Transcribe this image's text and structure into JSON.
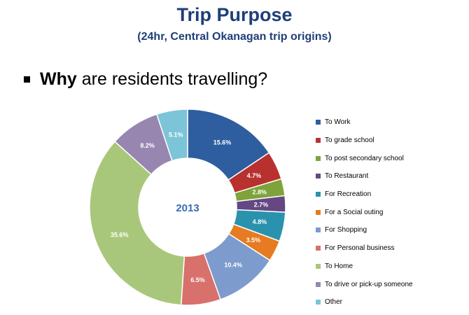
{
  "header": {
    "title": "Trip Purpose",
    "subtitle": "(24hr, Central Okanagan trip origins)",
    "bullet_bold": "Why",
    "bullet_rest": "are residents travelling?"
  },
  "chart_data": {
    "type": "pie",
    "donut": true,
    "center_label": "2013",
    "legend_position": "right",
    "categories": [
      "To Work",
      "To grade school",
      "To post secondary school",
      "To Restaurant",
      "For Recreation",
      "For a Social outing",
      "For Shopping",
      "For Personal business",
      "To Home",
      "To drive or pick-up someone",
      "Other"
    ],
    "values": [
      15.6,
      4.7,
      2.8,
      2.7,
      4.8,
      3.5,
      10.4,
      6.5,
      35.6,
      8.2,
      5.1
    ],
    "labels": [
      "15.6%",
      "4.7%",
      "2.8%",
      "2.7%",
      "4.8%",
      "3.5%",
      "10.4%",
      "6.5%",
      "35.6%",
      "8.2%",
      "5.1%"
    ],
    "colors": [
      "#2e5e9f",
      "#b8312f",
      "#7ea33b",
      "#644783",
      "#2a92ad",
      "#e77b21",
      "#7d9bcd",
      "#d8706c",
      "#a9c77a",
      "#9786b0",
      "#7cc4d8"
    ]
  }
}
